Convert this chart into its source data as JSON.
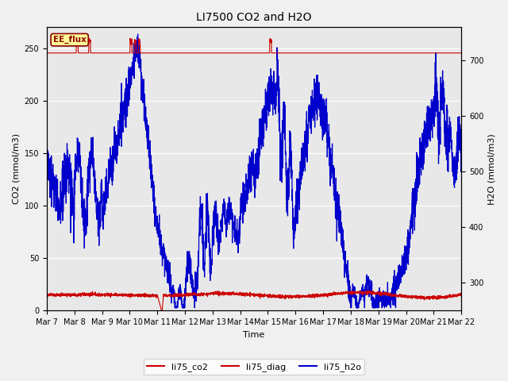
{
  "title": "LI7500 CO2 and H2O",
  "xlabel": "Time",
  "ylabel_left": "CO2 (mmol/m3)",
  "ylabel_right": "H2O (mmol/m3)",
  "ylim_left": [
    0,
    270
  ],
  "ylim_right": [
    250,
    760
  ],
  "annotation": "EE_flux",
  "annotation_color": "#8B0000",
  "annotation_bg": "#FFFF99",
  "plot_bg": "#E8E8E8",
  "fig_bg": "#F0F0F0",
  "grid_color": "#FFFFFF",
  "xtick_labels": [
    "Mar 7",
    "Mar 8",
    "Mar 9",
    "Mar 10",
    "Mar 11",
    "Mar 12",
    "Mar 13",
    "Mar 14",
    "Mar 15",
    "Mar 16",
    "Mar 17",
    "Mar 18",
    "Mar 19",
    "Mar 20",
    "Mar 21",
    "Mar 22"
  ],
  "n_days": 15,
  "co2_base": 245.5,
  "co2_color": "#CC0000",
  "diag_color": "#CC0000",
  "h2o_color": "#0000CC",
  "legend_labels": [
    "li75_co2",
    "li75_diag",
    "li75_h2o"
  ],
  "title_fontsize": 10,
  "axis_label_fontsize": 8,
  "tick_fontsize": 7,
  "legend_fontsize": 8
}
